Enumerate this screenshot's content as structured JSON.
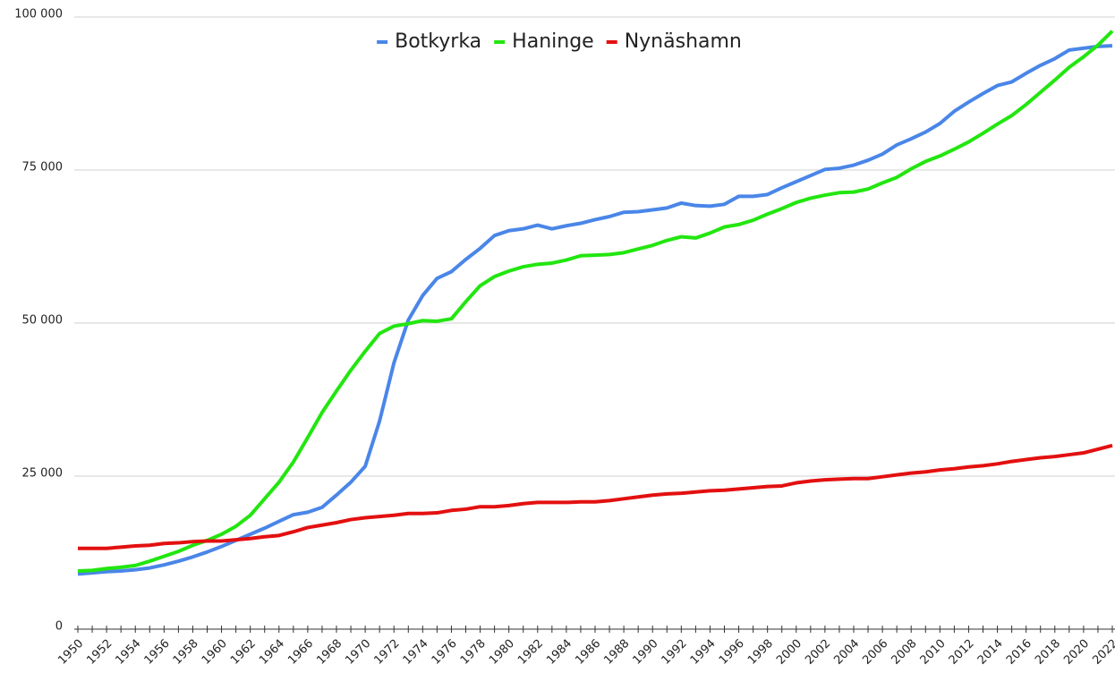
{
  "chart_data": {
    "type": "line",
    "x": [
      1950,
      1951,
      1952,
      1953,
      1954,
      1955,
      1956,
      1957,
      1958,
      1959,
      1960,
      1961,
      1962,
      1963,
      1964,
      1965,
      1966,
      1967,
      1968,
      1969,
      1970,
      1971,
      1972,
      1973,
      1974,
      1975,
      1976,
      1977,
      1978,
      1979,
      1980,
      1981,
      1982,
      1983,
      1984,
      1985,
      1986,
      1987,
      1988,
      1989,
      1990,
      1991,
      1992,
      1993,
      1994,
      1995,
      1996,
      1997,
      1998,
      1999,
      2000,
      2001,
      2002,
      2003,
      2004,
      2005,
      2006,
      2007,
      2008,
      2009,
      2010,
      2011,
      2012,
      2013,
      2014,
      2015,
      2016,
      2017,
      2018,
      2019,
      2020,
      2021,
      2022
    ],
    "series": [
      {
        "name": "Botkyrka",
        "color": "#4a86e8",
        "values": [
          9000,
          9200,
          9400,
          9500,
          9700,
          10000,
          10500,
          11100,
          11800,
          12600,
          13500,
          14500,
          15500,
          16500,
          17600,
          18700,
          19100,
          19900,
          21900,
          24000,
          26600,
          34000,
          43500,
          50500,
          54500,
          57300,
          58400,
          60400,
          62200,
          64300,
          65100,
          65400,
          66000,
          65400,
          65900,
          66300,
          66900,
          67400,
          68100,
          68200,
          68500,
          68800,
          69600,
          69200,
          69100,
          69400,
          70700,
          70700,
          71000,
          72100,
          73100,
          74100,
          75100,
          75300,
          75800,
          76600,
          77600,
          79100,
          80100,
          81200,
          82600,
          84600,
          86100,
          87500,
          88800,
          89400,
          90800,
          92100,
          93200,
          94600,
          94900,
          95200,
          95300
        ]
      },
      {
        "name": "Haninge",
        "color": "#22e60f",
        "values": [
          9500,
          9600,
          9900,
          10100,
          10400,
          11100,
          11900,
          12700,
          13700,
          14500,
          15500,
          16800,
          18600,
          21300,
          24000,
          27300,
          31300,
          35400,
          38900,
          42300,
          45400,
          48300,
          49500,
          49900,
          50400,
          50300,
          50700,
          53500,
          56100,
          57600,
          58500,
          59200,
          59600,
          59800,
          60300,
          61000,
          61100,
          61200,
          61500,
          62100,
          62700,
          63500,
          64100,
          63900,
          64700,
          65700,
          66100,
          66800,
          67800,
          68700,
          69700,
          70400,
          70900,
          71300,
          71400,
          71900,
          72900,
          73800,
          75200,
          76400,
          77300,
          78400,
          79600,
          81000,
          82500,
          83900,
          85700,
          87700,
          89700,
          91800,
          93500,
          95400,
          97700
        ]
      },
      {
        "name": "Nynäshamn",
        "color": "#e31010",
        "values": [
          13200,
          13200,
          13200,
          13400,
          13600,
          13700,
          14000,
          14100,
          14300,
          14400,
          14400,
          14600,
          14800,
          15100,
          15300,
          15900,
          16600,
          17000,
          17400,
          17900,
          18200,
          18400,
          18600,
          18900,
          18900,
          19000,
          19400,
          19600,
          20000,
          20000,
          20200,
          20500,
          20700,
          20700,
          20700,
          20800,
          20800,
          21000,
          21300,
          21600,
          21900,
          22100,
          22200,
          22400,
          22600,
          22700,
          22900,
          23100,
          23300,
          23400,
          23900,
          24200,
          24400,
          24500,
          24600,
          24600,
          24900,
          25200,
          25500,
          25700,
          26000,
          26200,
          26500,
          26700,
          27000,
          27400,
          27700,
          28000,
          28200,
          28500,
          28800,
          29400,
          30000
        ]
      }
    ],
    "xlim": [
      1950,
      2022
    ],
    "xticks": [
      1950,
      1952,
      1954,
      1956,
      1958,
      1960,
      1962,
      1964,
      1966,
      1968,
      1970,
      1972,
      1974,
      1976,
      1978,
      1980,
      1982,
      1984,
      1986,
      1988,
      1990,
      1992,
      1994,
      1996,
      1998,
      2000,
      2002,
      2004,
      2006,
      2008,
      2010,
      2012,
      2014,
      2016,
      2018,
      2020,
      2022
    ],
    "ylim": [
      0,
      100000
    ],
    "yticks": [
      0,
      {
        "value": 25000,
        "label": "25 000"
      },
      {
        "value": 50000,
        "label": "50 000"
      },
      {
        "value": 75000,
        "label": "75 000"
      },
      {
        "value": 100000,
        "label": "100 000"
      }
    ],
    "grid": true,
    "legend": "top"
  }
}
